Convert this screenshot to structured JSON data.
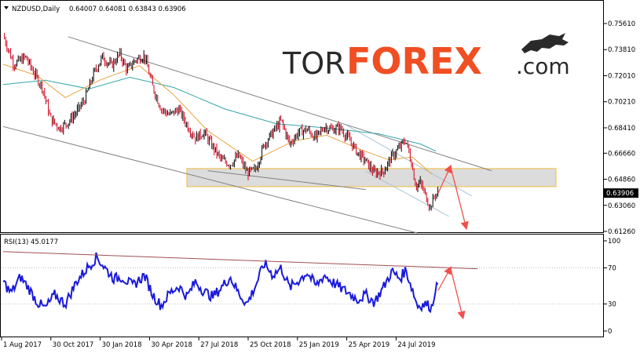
{
  "header": {
    "symbol": "NZDUSD,Daily",
    "ohlc": "0.64007 0.64081 0.63843 0.63906"
  },
  "logo": {
    "part1": "TOR",
    "part2": "FOREX",
    "part3": ".com"
  },
  "rsi_header": "RSI(13) 45.0177",
  "current_price_label": "0.63906",
  "colors": {
    "bull": "#000000",
    "bear": "#d0021b",
    "ma_fast": "#e8a33d",
    "ma_slow": "#33a6a6",
    "rsi_line": "#1a1adb",
    "channel": "#808080",
    "channel_light": "#a9c3d6",
    "zone_fill": "#d9d9d9",
    "zone_border": "#f0b429",
    "arrow": "#f0504a",
    "rsi_trend": "#a05050",
    "logo_accent": "#f04e23",
    "price_tag_bg": "#000000"
  },
  "chart_data": [
    {
      "type": "candlestick",
      "title": "NZDUSD,Daily",
      "ylim": [
        0.6126,
        0.7561
      ],
      "y_ticks": [
        "0.75610",
        "0.73810",
        "0.72010",
        "0.70210",
        "0.68410",
        "0.66660",
        "0.64860",
        "0.63060",
        "0.61260"
      ],
      "x_ticks": [
        "1 Aug 2017",
        "30 Oct 2017",
        "30 Jan 2018",
        "30 Apr 2018",
        "27 Jul 2018",
        "25 Oct 2018",
        "25 Jan 2019",
        "25 Apr 2019",
        "24 Jul 2019"
      ],
      "last": {
        "open": 0.64007,
        "high": 0.64081,
        "low": 0.63843,
        "close": 0.63906
      },
      "close_path": [
        [
          "2017-08-01",
          0.748
        ],
        [
          "2017-08-20",
          0.728
        ],
        [
          "2017-09-10",
          0.733
        ],
        [
          "2017-09-25",
          0.722
        ],
        [
          "2017-10-10",
          0.712
        ],
        [
          "2017-10-25",
          0.69
        ],
        [
          "2017-11-10",
          0.684
        ],
        [
          "2017-11-25",
          0.688
        ],
        [
          "2017-12-10",
          0.695
        ],
        [
          "2017-12-25",
          0.704
        ],
        [
          "2018-01-10",
          0.722
        ],
        [
          "2018-01-25",
          0.733
        ],
        [
          "2018-02-10",
          0.727
        ],
        [
          "2018-02-25",
          0.735
        ],
        [
          "2018-03-10",
          0.724
        ],
        [
          "2018-03-25",
          0.731
        ],
        [
          "2018-04-10",
          0.734
        ],
        [
          "2018-04-25",
          0.712
        ],
        [
          "2018-05-10",
          0.697
        ],
        [
          "2018-05-25",
          0.693
        ],
        [
          "2018-06-10",
          0.697
        ],
        [
          "2018-06-25",
          0.686
        ],
        [
          "2018-07-10",
          0.677
        ],
        [
          "2018-07-25",
          0.681
        ],
        [
          "2018-08-10",
          0.671
        ],
        [
          "2018-08-25",
          0.662
        ],
        [
          "2018-09-10",
          0.659
        ],
        [
          "2018-09-25",
          0.665
        ],
        [
          "2018-10-10",
          0.653
        ],
        [
          "2018-10-25",
          0.655
        ],
        [
          "2018-11-10",
          0.673
        ],
        [
          "2018-11-25",
          0.681
        ],
        [
          "2018-12-10",
          0.689
        ],
        [
          "2018-12-25",
          0.673
        ],
        [
          "2019-01-10",
          0.681
        ],
        [
          "2019-01-25",
          0.683
        ],
        [
          "2019-02-10",
          0.677
        ],
        [
          "2019-02-25",
          0.685
        ],
        [
          "2019-03-10",
          0.683
        ],
        [
          "2019-03-25",
          0.684
        ],
        [
          "2019-04-10",
          0.676
        ],
        [
          "2019-04-25",
          0.667
        ],
        [
          "2019-05-10",
          0.661
        ],
        [
          "2019-05-25",
          0.653
        ],
        [
          "2019-06-10",
          0.654
        ],
        [
          "2019-06-25",
          0.664
        ],
        [
          "2019-07-10",
          0.671
        ],
        [
          "2019-07-20",
          0.676
        ],
        [
          "2019-07-31",
          0.659
        ],
        [
          "2019-08-07",
          0.644
        ],
        [
          "2019-08-15",
          0.646
        ],
        [
          "2019-08-26",
          0.636
        ],
        [
          "2019-09-02",
          0.629
        ],
        [
          "2019-09-10",
          0.638
        ],
        [
          "2019-09-16",
          0.63906
        ]
      ],
      "support_zone": [
        0.6435,
        0.656
      ],
      "forecast": [
        [
          "2019-09-16",
          0.63906
        ],
        [
          "2019-10-08",
          0.6575
        ],
        [
          "2019-11-05",
          0.615
        ]
      ],
      "ma_fast": [
        [
          "2017-08-01",
          0.728
        ],
        [
          "2017-10-01",
          0.72
        ],
        [
          "2017-11-20",
          0.705
        ],
        [
          "2018-01-20",
          0.717
        ],
        [
          "2018-04-01",
          0.727
        ],
        [
          "2018-06-01",
          0.707
        ],
        [
          "2018-08-01",
          0.682
        ],
        [
          "2018-10-20",
          0.661
        ],
        [
          "2019-01-01",
          0.675
        ],
        [
          "2019-03-01",
          0.679
        ],
        [
          "2019-05-01",
          0.669
        ],
        [
          "2019-06-20",
          0.662
        ],
        [
          "2019-08-01",
          0.664
        ],
        [
          "2019-09-05",
          0.652
        ]
      ],
      "ma_slow": [
        [
          "2017-08-01",
          0.714
        ],
        [
          "2017-10-15",
          0.717
        ],
        [
          "2018-01-01",
          0.711
        ],
        [
          "2018-03-15",
          0.719
        ],
        [
          "2018-06-01",
          0.712
        ],
        [
          "2018-09-01",
          0.697
        ],
        [
          "2018-12-01",
          0.687
        ],
        [
          "2019-03-01",
          0.684
        ],
        [
          "2019-06-01",
          0.68
        ],
        [
          "2019-08-15",
          0.673
        ],
        [
          "2019-09-12",
          0.668
        ]
      ],
      "channel_lines": [
        [
          [
            "2017-11-25",
            0.747
          ],
          [
            "2019-12-20",
            0.6545
          ]
        ],
        [
          [
            "2017-08-01",
            0.685
          ],
          [
            "2019-08-10",
            0.6115
          ]
        ],
        [
          [
            "2018-08-01",
            0.6545
          ],
          [
            "2019-05-10",
            0.6415
          ]
        ]
      ],
      "short_channel": [
        [
          [
            "2019-04-05",
            0.686
          ],
          [
            "2019-11-15",
            0.637
          ]
        ],
        [
          [
            "2019-05-10",
            0.654
          ],
          [
            "2019-10-05",
            0.623
          ]
        ]
      ]
    },
    {
      "type": "line",
      "title": "RSI(13) 45.0177",
      "ylim": [
        0,
        100
      ],
      "y_ticks": [
        "100",
        "70",
        "30",
        "0"
      ],
      "levels": [
        70,
        30
      ],
      "values_path": [
        [
          "2017-08-01",
          55
        ],
        [
          "2017-08-15",
          42
        ],
        [
          "2017-09-01",
          60
        ],
        [
          "2017-09-15",
          48
        ],
        [
          "2017-10-01",
          32
        ],
        [
          "2017-10-15",
          25
        ],
        [
          "2017-11-01",
          40
        ],
        [
          "2017-11-20",
          30
        ],
        [
          "2017-12-10",
          55
        ],
        [
          "2018-01-01",
          72
        ],
        [
          "2018-01-15",
          82
        ],
        [
          "2018-02-01",
          68
        ],
        [
          "2018-02-15",
          58
        ],
        [
          "2018-03-01",
          60
        ],
        [
          "2018-03-20",
          50
        ],
        [
          "2018-04-10",
          62
        ],
        [
          "2018-04-25",
          40
        ],
        [
          "2018-05-10",
          28
        ],
        [
          "2018-05-25",
          42
        ],
        [
          "2018-06-10",
          50
        ],
        [
          "2018-06-25",
          38
        ],
        [
          "2018-07-10",
          55
        ],
        [
          "2018-07-25",
          44
        ],
        [
          "2018-08-10",
          38
        ],
        [
          "2018-08-25",
          48
        ],
        [
          "2018-09-10",
          60
        ],
        [
          "2018-09-25",
          42
        ],
        [
          "2018-10-10",
          30
        ],
        [
          "2018-10-25",
          50
        ],
        [
          "2018-11-10",
          75
        ],
        [
          "2018-11-25",
          62
        ],
        [
          "2018-12-10",
          70
        ],
        [
          "2018-12-25",
          48
        ],
        [
          "2019-01-10",
          56
        ],
        [
          "2019-01-25",
          65
        ],
        [
          "2019-02-10",
          50
        ],
        [
          "2019-02-25",
          62
        ],
        [
          "2019-03-10",
          55
        ],
        [
          "2019-03-25",
          48
        ],
        [
          "2019-04-10",
          42
        ],
        [
          "2019-04-25",
          35
        ],
        [
          "2019-05-10",
          40
        ],
        [
          "2019-05-25",
          32
        ],
        [
          "2019-06-10",
          48
        ],
        [
          "2019-06-25",
          66
        ],
        [
          "2019-07-10",
          58
        ],
        [
          "2019-07-20",
          68
        ],
        [
          "2019-07-31",
          48
        ],
        [
          "2019-08-10",
          28
        ],
        [
          "2019-08-25",
          30
        ],
        [
          "2019-09-05",
          26
        ],
        [
          "2019-09-12",
          52
        ],
        [
          "2019-09-16",
          45
        ]
      ],
      "trendline": [
        [
          "2017-08-01",
          88
        ],
        [
          "2019-11-25",
          69
        ]
      ],
      "forecast": [
        [
          "2019-09-16",
          45
        ],
        [
          "2019-10-08",
          70
        ],
        [
          "2019-10-30",
          15
        ]
      ]
    }
  ]
}
